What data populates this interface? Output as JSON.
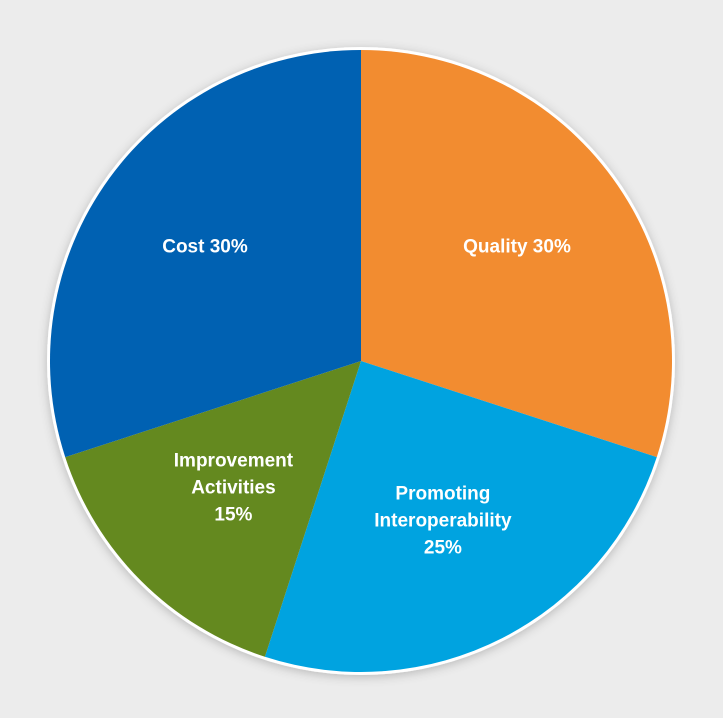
{
  "chart_data": {
    "type": "pie",
    "slices": [
      {
        "label_lines": [
          "Quality 30%"
        ],
        "name": "Quality",
        "value": 30,
        "color": "#f28c30"
      },
      {
        "label_lines": [
          "Promoting",
          "Interoperability",
          "25%"
        ],
        "name": "Promoting Interoperability",
        "value": 25,
        "color": "#00a3e0"
      },
      {
        "label_lines": [
          "Improvement",
          "Activities",
          "15%"
        ],
        "name": "Improvement Activities",
        "value": 15,
        "color": "#64891f"
      },
      {
        "label_lines": [
          "Cost 30%"
        ],
        "name": "Cost",
        "value": 30,
        "color": "#0061b2"
      }
    ],
    "start_angle_deg": 0,
    "direction": "clockwise",
    "unit": "%"
  }
}
